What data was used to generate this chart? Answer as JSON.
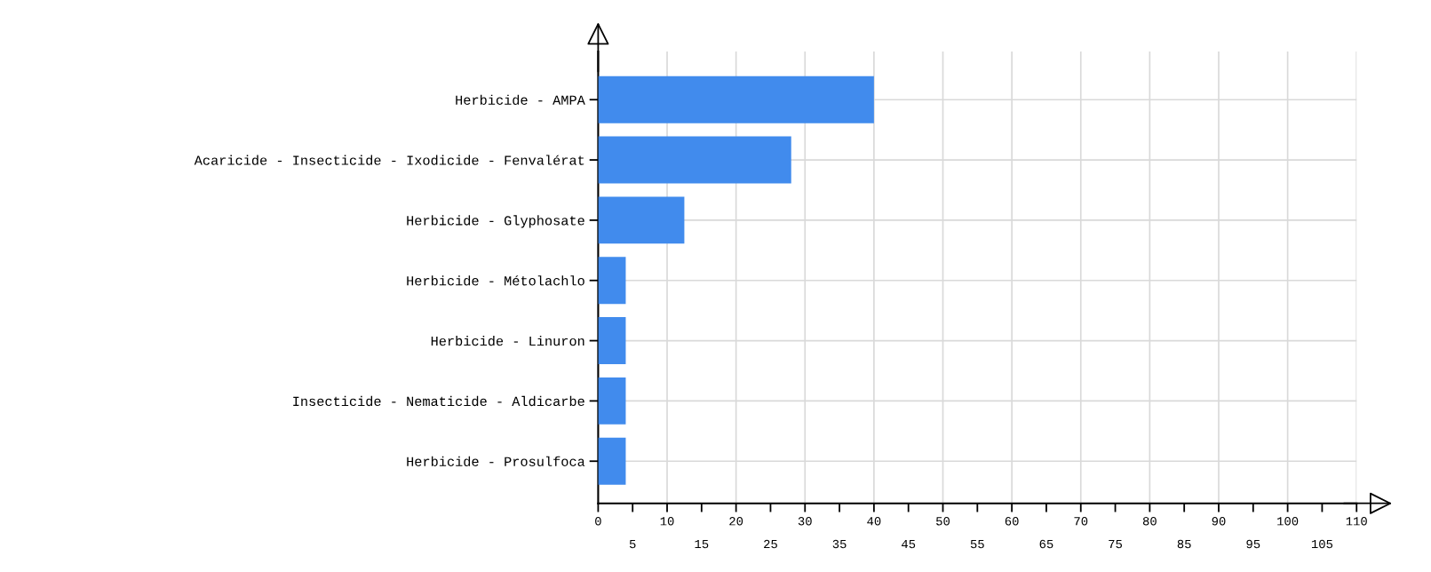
{
  "chart_data": {
    "type": "bar",
    "orientation": "horizontal",
    "categories": [
      "Herbicide - AMPA",
      "Acaricide - Insecticide - Ixodicide - Fenvalérat",
      "Herbicide - Glyphosate",
      "Herbicide - Métolachlo",
      "Herbicide - Linuron",
      "Insecticide - Nematicide - Aldicarbe",
      "Herbicide - Prosulfoca"
    ],
    "values": [
      40,
      28,
      12.5,
      4,
      4,
      4,
      4
    ],
    "color": "#418bed",
    "xlim": [
      0,
      110
    ],
    "xticks": [
      0,
      10,
      20,
      30,
      40,
      50,
      60,
      70,
      80,
      90,
      100,
      110
    ],
    "x2lim": [
      0,
      110
    ],
    "x2ticks": [
      5,
      15,
      25,
      35,
      45,
      55,
      65,
      75,
      85,
      95,
      105
    ],
    "grid": true
  }
}
